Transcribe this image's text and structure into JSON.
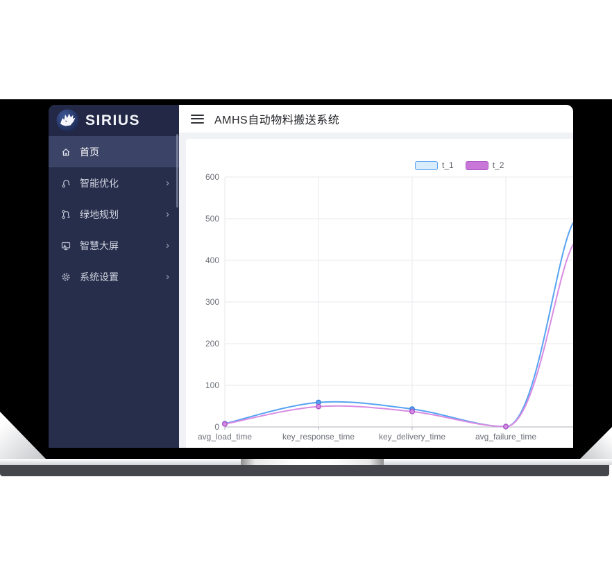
{
  "brand": {
    "name": "SIRIUS"
  },
  "icons": {
    "chevron_right": "›"
  },
  "sidebar": {
    "items": [
      {
        "label": "首页",
        "icon": "home-icon",
        "active": true,
        "has_submenu": false
      },
      {
        "label": "智能优化",
        "icon": "optimize-icon",
        "active": false,
        "has_submenu": true
      },
      {
        "label": "绿地规划",
        "icon": "planning-icon",
        "active": false,
        "has_submenu": true
      },
      {
        "label": "智慧大屏",
        "icon": "screen-icon",
        "active": false,
        "has_submenu": true
      },
      {
        "label": "系统设置",
        "icon": "settings-icon",
        "active": false,
        "has_submenu": true
      }
    ]
  },
  "header": {
    "title": "AMHS自动物料搬送系统"
  },
  "chart_data": {
    "type": "line",
    "smooth": true,
    "categories": [
      "avg_load_time",
      "key_response_time",
      "key_delivery_time",
      "avg_failure_time"
    ],
    "series": [
      {
        "name": "t_1",
        "color": "#56a3f2",
        "color_dark": "#3d7fd6",
        "legend_fill": "#d9ecfc",
        "values": [
          8,
          59,
          43,
          1
        ],
        "clip_edge_value": 490
      },
      {
        "name": "t_2",
        "color": "#d88be2",
        "color_dark": "#ab57c5",
        "legend_fill": "#c877d8",
        "values": [
          7,
          49,
          37,
          1
        ],
        "clip_edge_value": 438
      }
    ],
    "ylim": [
      0,
      600
    ],
    "yticks": [
      0,
      100,
      200,
      300,
      400,
      500,
      600
    ],
    "xlabel": "",
    "ylabel": "",
    "legend_position": "top",
    "grid": true,
    "note": "line continues past right clip edge toward a 5th off-screen point"
  }
}
